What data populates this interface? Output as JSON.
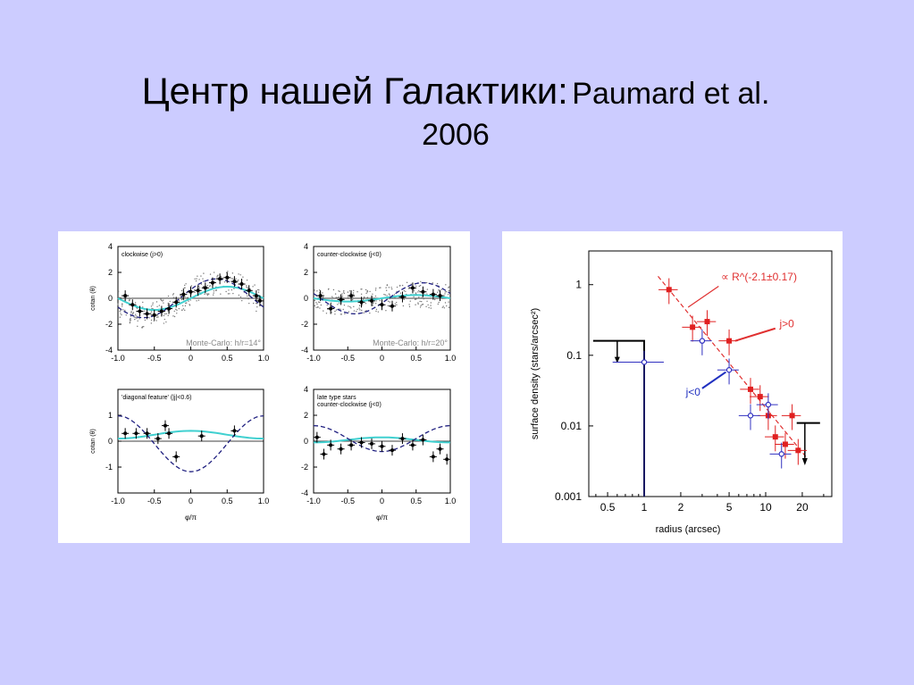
{
  "slide": {
    "title_main": "Центр нашей Галактики:",
    "title_ref": "Paumard et al.",
    "title_year": "2006"
  },
  "chart_data": [
    {
      "type": "scatter",
      "title": "clockwise (j>0)",
      "annotation": "Monte-Carlo: h/r=14°",
      "ylabel": "cotan (θ)",
      "xlabel": "",
      "xlim": [
        -1.0,
        1.0
      ],
      "ylim": [
        -4,
        4
      ],
      "xticks": [
        "-1.0",
        "-0.5",
        "0",
        "0.5",
        "1.0"
      ],
      "yticks": [
        "4",
        "2",
        "0",
        "-2",
        "-4"
      ],
      "points": {
        "x": [
          -0.9,
          -0.8,
          -0.7,
          -0.6,
          -0.5,
          -0.4,
          -0.3,
          -0.2,
          -0.1,
          0.0,
          0.1,
          0.2,
          0.3,
          0.4,
          0.5,
          0.6,
          0.7,
          0.8,
          0.9,
          0.95
        ],
        "y": [
          0.2,
          -0.5,
          -1.0,
          -1.2,
          -1.3,
          -1.0,
          -0.8,
          -0.3,
          0.3,
          0.5,
          0.6,
          0.8,
          1.2,
          1.5,
          1.6,
          1.3,
          1.1,
          0.6,
          0.2,
          -0.2
        ]
      },
      "grid": false
    },
    {
      "type": "scatter",
      "title": "counter-clockwise (j<0)",
      "annotation": "Monte-Carlo: h/r=20°",
      "ylabel": "",
      "xlabel": "",
      "xlim": [
        -1.0,
        1.0
      ],
      "ylim": [
        -4,
        4
      ],
      "xticks": [
        "-1.0",
        "-0.5",
        "0",
        "0.5",
        "1.0"
      ],
      "yticks": [
        "4",
        "2",
        "0",
        "-2",
        "-4"
      ],
      "points": {
        "x": [
          -0.9,
          -0.75,
          -0.6,
          -0.45,
          -0.3,
          -0.15,
          0.0,
          0.15,
          0.3,
          0.45,
          0.6,
          0.75,
          0.85
        ],
        "y": [
          0.2,
          -0.8,
          -0.1,
          0.2,
          -0.3,
          -0.2,
          -0.5,
          -0.6,
          0.1,
          0.8,
          0.5,
          0.3,
          0.2
        ]
      },
      "grid": false
    },
    {
      "type": "scatter",
      "title": "'diagonal feature' (|j|<0.6)",
      "annotation": "",
      "ylabel": "cotan (θ)",
      "xlabel": "φ/π",
      "xlim": [
        -1.0,
        1.0
      ],
      "ylim": [
        -2,
        2
      ],
      "xticks": [
        "-1.0",
        "-0.5",
        "0",
        "0.5",
        "1.0"
      ],
      "yticks": [
        "1",
        "0",
        "-1"
      ],
      "points": {
        "x": [
          -0.9,
          -0.75,
          -0.6,
          -0.45,
          -0.35,
          -0.3,
          -0.2,
          0.15,
          0.6
        ],
        "y": [
          0.3,
          0.3,
          0.3,
          0.1,
          0.6,
          0.3,
          -0.6,
          0.2,
          0.4
        ]
      },
      "grid": false
    },
    {
      "type": "scatter",
      "title": "late type stars",
      "subtitle": "counter-clockwise (j<0)",
      "annotation": "",
      "ylabel": "",
      "xlabel": "φ/π",
      "xlim": [
        -1.0,
        1.0
      ],
      "ylim": [
        -4,
        4
      ],
      "xticks": [
        "-1.0",
        "-0.5",
        "0",
        "0.5",
        "1.0"
      ],
      "yticks": [
        "4",
        "2",
        "0",
        "-2",
        "-4"
      ],
      "points": {
        "x": [
          -0.95,
          -0.85,
          -0.75,
          -0.6,
          -0.45,
          -0.3,
          -0.15,
          0.0,
          0.15,
          0.3,
          0.45,
          0.6,
          0.75,
          0.85,
          0.95
        ],
        "y": [
          0.3,
          -1.0,
          -0.3,
          -0.6,
          -0.3,
          -0.1,
          -0.2,
          -0.4,
          -0.7,
          0.2,
          -0.3,
          0.1,
          -1.2,
          -0.6,
          -1.4
        ]
      },
      "grid": false
    },
    {
      "type": "scatter",
      "xscale": "log",
      "yscale": "log",
      "title": "",
      "xlabel": "radius (arcsec)",
      "ylabel": "surface density (stars/arcsec²)",
      "xlim": [
        0.35,
        35
      ],
      "ylim": [
        0.001,
        3
      ],
      "xticks": [
        "0.5",
        "1",
        "2",
        "5",
        "10",
        "20"
      ],
      "yticks": [
        "1",
        "0.1",
        "0.01",
        "0.001"
      ],
      "annotations": [
        "∝ R^(-2.1±0.17)",
        "j>0",
        "j<0"
      ],
      "series": [
        {
          "name": "j>0",
          "color": "#e02020",
          "x": [
            1.6,
            2.5,
            3.3,
            5.0,
            7.5,
            9.0,
            10.5,
            12.0,
            14.5,
            16.5,
            18.5
          ],
          "y": [
            0.85,
            0.25,
            0.3,
            0.16,
            0.033,
            0.026,
            0.014,
            0.007,
            0.0055,
            0.014,
            0.0045
          ]
        },
        {
          "name": "j<0",
          "color": "#3030c0",
          "x": [
            1.0,
            3.0,
            5.0,
            7.5,
            10.5,
            13.5
          ],
          "y": [
            0.08,
            0.16,
            0.062,
            0.014,
            0.02,
            0.004
          ]
        }
      ],
      "grid": false
    }
  ]
}
